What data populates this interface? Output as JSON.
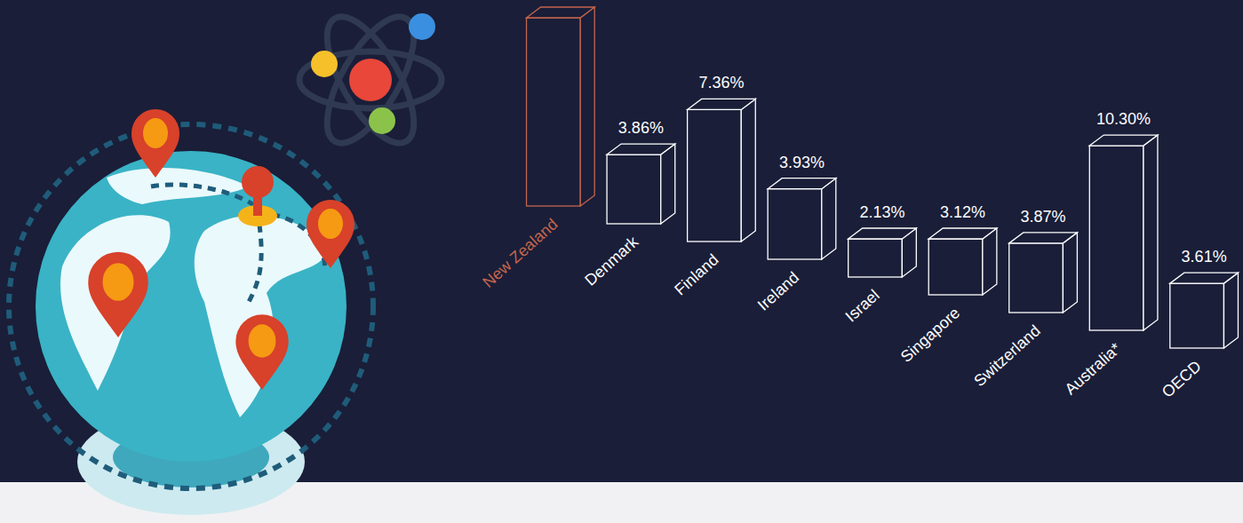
{
  "chart_data": {
    "type": "bar",
    "categories": [
      "New Zealand",
      "Denmark",
      "Finland",
      "Ireland",
      "Israel",
      "Singapore",
      "Switzerland",
      "Australia*",
      "OECD"
    ],
    "values": [
      10.5,
      3.86,
      7.36,
      3.93,
      2.13,
      3.12,
      3.87,
      10.3,
      3.61
    ],
    "value_labels": [
      null,
      "3.86%",
      "7.36%",
      "3.93%",
      "2.13%",
      "3.12%",
      "3.87%",
      "10.30%",
      "3.61%"
    ],
    "colors": [
      "#c4654e",
      "#ffffff",
      "#ffffff",
      "#ffffff",
      "#ffffff",
      "#ffffff",
      "#ffffff",
      "#ffffff",
      "#ffffff"
    ],
    "ylim": [
      0,
      10.5
    ],
    "data_labels": true,
    "tick_labels": false
  }
}
